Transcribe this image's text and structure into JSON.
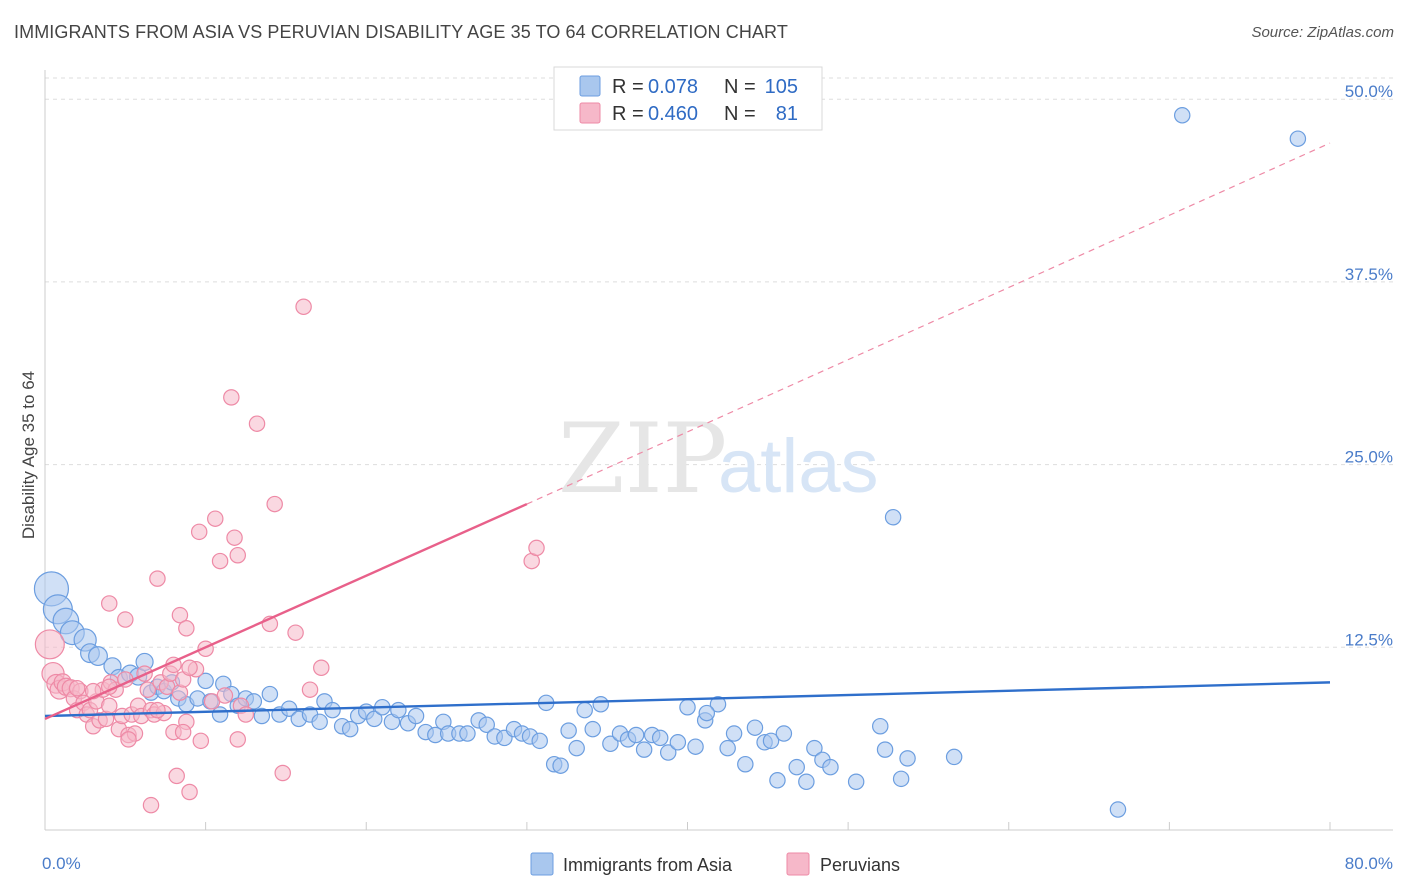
{
  "title": "IMMIGRANTS FROM ASIA VS PERUVIAN DISABILITY AGE 35 TO 64 CORRELATION CHART",
  "source": "Source: ZipAtlas.com",
  "watermark": {
    "zip": "ZIP",
    "atlas": "atlas"
  },
  "colors": {
    "blue_fill": "#a9c7ee",
    "blue_stroke": "#6c9ee0",
    "blue_line": "#2f6fcb",
    "pink_fill": "#f6b8c9",
    "pink_stroke": "#ee8aa6",
    "pink_line": "#e8608a",
    "tick_text": "#4a7cc9",
    "grid": "#dddddd"
  },
  "chart_data": {
    "type": "scatter",
    "ylabel": "Disability Age 35 to 64",
    "xlim": [
      0,
      80
    ],
    "ylim": [
      0,
      52
    ],
    "x_ticks": [
      0,
      80
    ],
    "x_tick_labels": [
      "0.0%",
      "80.0%"
    ],
    "y_ticks": [
      12.5,
      25.0,
      37.5,
      50.0
    ],
    "y_tick_labels": [
      "12.5%",
      "25.0%",
      "37.5%",
      "50.0%"
    ],
    "grid": true,
    "legend": {
      "placement": "top-center",
      "entries": [
        {
          "r_label": "R =",
          "r": "0.078",
          "n_label": "N =",
          "n": "105"
        },
        {
          "r_label": "R =",
          "r": "0.460",
          "n_label": "N =",
          "n": "81"
        }
      ]
    },
    "series": [
      {
        "name": "Immigrants from Asia",
        "color": "blue",
        "trend": {
          "x0": 0,
          "y0": 7.8,
          "x1": 80,
          "y1": 10.1,
          "dashed_from": null
        },
        "points": [
          [
            0.4,
            16.5,
            2.0
          ],
          [
            0.8,
            15.1,
            1.7
          ],
          [
            1.3,
            14.3,
            1.5
          ],
          [
            1.7,
            13.5,
            1.4
          ],
          [
            2.5,
            13.0,
            1.3
          ],
          [
            2.8,
            12.1,
            1.1
          ],
          [
            3.3,
            11.9,
            1.1
          ],
          [
            4.2,
            11.2,
            1.0
          ],
          [
            4.6,
            10.4,
            1.0
          ],
          [
            5.3,
            10.7,
            1.0
          ],
          [
            5.8,
            10.5,
            1.0
          ],
          [
            6.2,
            11.5,
            1.0
          ],
          [
            6.6,
            9.4,
            0.9
          ],
          [
            7.0,
            9.8,
            0.9
          ],
          [
            7.4,
            9.5,
            0.9
          ],
          [
            7.9,
            10.1,
            0.9
          ],
          [
            8.3,
            9.0,
            0.9
          ],
          [
            8.8,
            8.6,
            0.9
          ],
          [
            9.5,
            9.0,
            0.9
          ],
          [
            10.0,
            10.2,
            0.9
          ],
          [
            10.3,
            8.8,
            0.9
          ],
          [
            10.9,
            7.9,
            0.9
          ],
          [
            11.1,
            10.0,
            0.9
          ],
          [
            11.6,
            9.3,
            0.9
          ],
          [
            12.0,
            8.5,
            0.9
          ],
          [
            12.5,
            9.0,
            0.9
          ],
          [
            13.0,
            8.8,
            0.9
          ],
          [
            13.5,
            7.8,
            0.9
          ],
          [
            14.0,
            9.3,
            0.9
          ],
          [
            14.6,
            7.9,
            0.9
          ],
          [
            15.2,
            8.3,
            0.9
          ],
          [
            15.8,
            7.6,
            0.9
          ],
          [
            16.5,
            7.9,
            0.9
          ],
          [
            17.1,
            7.4,
            0.9
          ],
          [
            17.4,
            8.8,
            0.9
          ],
          [
            17.9,
            8.2,
            0.9
          ],
          [
            18.5,
            7.1,
            0.9
          ],
          [
            19.0,
            6.9,
            0.9
          ],
          [
            19.5,
            7.8,
            0.9
          ],
          [
            20.0,
            8.1,
            0.9
          ],
          [
            20.5,
            7.6,
            0.9
          ],
          [
            21.0,
            8.4,
            0.9
          ],
          [
            21.6,
            7.4,
            0.9
          ],
          [
            22.0,
            8.2,
            0.9
          ],
          [
            22.6,
            7.3,
            0.9
          ],
          [
            23.1,
            7.8,
            0.9
          ],
          [
            23.7,
            6.7,
            0.9
          ],
          [
            24.3,
            6.5,
            0.9
          ],
          [
            24.8,
            7.4,
            0.9
          ],
          [
            25.1,
            6.6,
            0.9
          ],
          [
            25.8,
            6.6,
            0.9
          ],
          [
            26.3,
            6.6,
            0.9
          ],
          [
            27.0,
            7.5,
            0.9
          ],
          [
            27.5,
            7.2,
            0.9
          ],
          [
            28.0,
            6.4,
            0.9
          ],
          [
            28.6,
            6.3,
            0.9
          ],
          [
            29.2,
            6.9,
            0.9
          ],
          [
            29.7,
            6.6,
            0.9
          ],
          [
            30.2,
            6.4,
            0.9
          ],
          [
            30.8,
            6.1,
            0.9
          ],
          [
            31.2,
            8.7,
            0.9
          ],
          [
            31.7,
            4.5,
            0.9
          ],
          [
            32.1,
            4.4,
            0.9
          ],
          [
            32.6,
            6.8,
            0.9
          ],
          [
            33.1,
            5.6,
            0.9
          ],
          [
            33.6,
            8.2,
            0.9
          ],
          [
            34.1,
            6.9,
            0.9
          ],
          [
            34.6,
            8.6,
            0.9
          ],
          [
            35.2,
            5.9,
            0.9
          ],
          [
            35.8,
            6.6,
            0.9
          ],
          [
            36.3,
            6.2,
            0.9
          ],
          [
            36.8,
            6.5,
            0.9
          ],
          [
            37.3,
            5.5,
            0.9
          ],
          [
            37.8,
            6.5,
            0.9
          ],
          [
            38.3,
            6.3,
            0.9
          ],
          [
            38.8,
            5.3,
            0.9
          ],
          [
            39.4,
            6.0,
            0.9
          ],
          [
            40.0,
            8.4,
            0.9
          ],
          [
            40.5,
            5.7,
            0.9
          ],
          [
            41.1,
            7.5,
            0.9
          ],
          [
            41.9,
            8.6,
            0.9
          ],
          [
            42.5,
            5.6,
            0.9
          ],
          [
            42.9,
            6.6,
            0.9
          ],
          [
            43.6,
            4.5,
            0.9
          ],
          [
            44.2,
            7.0,
            0.9
          ],
          [
            44.8,
            6.0,
            0.9
          ],
          [
            45.2,
            6.1,
            0.9
          ],
          [
            45.6,
            3.4,
            0.9
          ],
          [
            46.0,
            6.6,
            0.9
          ],
          [
            46.8,
            4.3,
            0.9
          ],
          [
            47.4,
            3.3,
            0.9
          ],
          [
            47.9,
            5.6,
            0.9
          ],
          [
            48.4,
            4.8,
            0.9
          ],
          [
            48.9,
            4.3,
            0.9
          ],
          [
            50.5,
            3.3,
            0.9
          ],
          [
            52.0,
            7.1,
            0.9
          ],
          [
            52.3,
            5.5,
            0.9
          ],
          [
            53.3,
            3.5,
            0.9
          ],
          [
            53.7,
            4.9,
            0.9
          ],
          [
            56.6,
            5.0,
            0.9
          ],
          [
            66.8,
            1.4,
            0.9
          ],
          [
            70.8,
            48.9,
            0.9
          ],
          [
            78.0,
            47.3,
            0.9
          ],
          [
            52.8,
            21.4,
            0.9
          ],
          [
            41.2,
            8.0,
            0.9
          ]
        ]
      },
      {
        "name": "Peruvians",
        "color": "pink",
        "trend": {
          "x0": 0,
          "y0": 7.6,
          "x1": 30,
          "y1": 22.3,
          "dashed_x1": 80,
          "dashed_y1": 47.0
        },
        "points": [
          [
            0.3,
            12.7,
            1.7
          ],
          [
            0.5,
            10.7,
            1.3
          ],
          [
            0.7,
            10.0,
            1.1
          ],
          [
            0.9,
            9.6,
            1.1
          ],
          [
            1.1,
            10.1,
            1.0
          ],
          [
            1.3,
            9.8,
            1.0
          ],
          [
            1.6,
            9.7,
            1.0
          ],
          [
            1.8,
            9.0,
            0.9
          ],
          [
            2.0,
            8.2,
            0.9
          ],
          [
            2.2,
            9.5,
            0.9
          ],
          [
            2.4,
            8.7,
            0.9
          ],
          [
            2.6,
            7.9,
            0.9
          ],
          [
            2.8,
            8.2,
            0.9
          ],
          [
            3.0,
            7.1,
            0.9
          ],
          [
            3.2,
            8.8,
            0.9
          ],
          [
            3.4,
            7.5,
            0.9
          ],
          [
            3.6,
            9.6,
            0.9
          ],
          [
            3.8,
            7.6,
            0.9
          ],
          [
            4.0,
            8.5,
            0.9
          ],
          [
            4.1,
            10.1,
            0.9
          ],
          [
            4.4,
            9.6,
            0.9
          ],
          [
            4.6,
            6.9,
            0.9
          ],
          [
            4.8,
            7.8,
            0.9
          ],
          [
            5.0,
            10.3,
            0.9
          ],
          [
            5.2,
            6.5,
            0.9
          ],
          [
            5.4,
            7.9,
            0.9
          ],
          [
            5.6,
            6.6,
            0.9
          ],
          [
            5.8,
            8.5,
            0.9
          ],
          [
            6.0,
            7.8,
            0.9
          ],
          [
            6.2,
            10.7,
            0.9
          ],
          [
            6.4,
            9.6,
            0.9
          ],
          [
            6.6,
            8.2,
            0.9
          ],
          [
            6.8,
            7.9,
            0.9
          ],
          [
            7.0,
            17.2,
            0.9
          ],
          [
            7.2,
            10.1,
            0.9
          ],
          [
            7.4,
            8.0,
            0.9
          ],
          [
            7.6,
            9.8,
            0.9
          ],
          [
            7.8,
            10.7,
            0.9
          ],
          [
            8.0,
            6.7,
            0.9
          ],
          [
            8.2,
            3.7,
            0.9
          ],
          [
            8.4,
            9.4,
            0.9
          ],
          [
            8.6,
            10.3,
            0.9
          ],
          [
            8.8,
            7.4,
            0.9
          ],
          [
            8.4,
            14.7,
            0.9
          ],
          [
            8.8,
            13.8,
            0.9
          ],
          [
            9.0,
            2.6,
            0.9
          ],
          [
            9.4,
            11.0,
            0.9
          ],
          [
            9.7,
            6.1,
            0.9
          ],
          [
            10.0,
            12.4,
            0.9
          ],
          [
            10.4,
            8.8,
            0.9
          ],
          [
            10.6,
            21.3,
            0.9
          ],
          [
            10.9,
            18.4,
            0.9
          ],
          [
            11.2,
            9.2,
            0.9
          ],
          [
            11.6,
            29.6,
            0.9
          ],
          [
            11.8,
            20.0,
            0.9
          ],
          [
            12.0,
            6.2,
            0.9
          ],
          [
            12.2,
            8.5,
            0.9
          ],
          [
            12.5,
            7.9,
            0.9
          ],
          [
            13.2,
            27.8,
            0.9
          ],
          [
            14.0,
            14.1,
            0.9
          ],
          [
            14.3,
            22.3,
            0.9
          ],
          [
            14.8,
            3.9,
            0.9
          ],
          [
            15.6,
            13.5,
            0.9
          ],
          [
            16.1,
            35.8,
            0.9
          ],
          [
            16.5,
            9.6,
            0.9
          ],
          [
            17.2,
            11.1,
            0.9
          ],
          [
            7.0,
            8.2,
            0.9
          ],
          [
            8.0,
            11.3,
            0.9
          ],
          [
            9.0,
            11.1,
            0.9
          ],
          [
            2.0,
            9.7,
            0.9
          ],
          [
            3.0,
            9.5,
            0.9
          ],
          [
            4.0,
            9.8,
            0.9
          ],
          [
            5.0,
            14.4,
            0.9
          ],
          [
            4.0,
            15.5,
            0.9
          ],
          [
            6.6,
            1.7,
            0.9
          ],
          [
            30.3,
            18.4,
            0.9
          ],
          [
            30.6,
            19.3,
            0.9
          ],
          [
            9.6,
            20.4,
            0.9
          ],
          [
            12.0,
            18.8,
            0.9
          ],
          [
            5.2,
            6.2,
            0.9
          ],
          [
            8.6,
            6.7,
            0.9
          ]
        ]
      }
    ]
  }
}
